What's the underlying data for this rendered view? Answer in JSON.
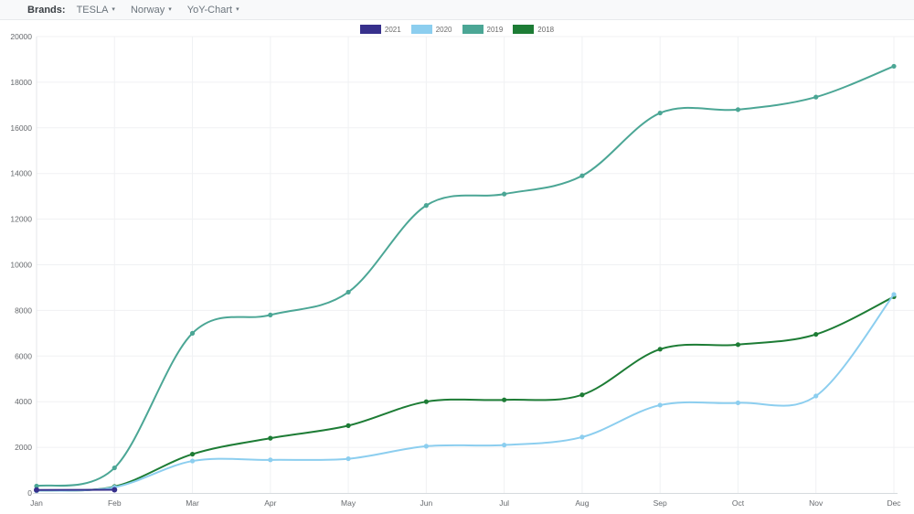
{
  "header": {
    "brands_label": "Brands:",
    "dropdowns": [
      {
        "label": "TESLA"
      },
      {
        "label": "Norway"
      },
      {
        "label": "YoY-Chart"
      }
    ],
    "caret_icon": "▾"
  },
  "chart_data": {
    "type": "line",
    "title": "",
    "xlabel": "",
    "ylabel": "",
    "x": [
      "Jan",
      "Feb",
      "Mar",
      "Apr",
      "May",
      "Jun",
      "Jul",
      "Aug",
      "Sep",
      "Oct",
      "Nov",
      "Dec"
    ],
    "ylim": [
      0,
      20000
    ],
    "ytick_step": 2000,
    "grid": true,
    "legend_position": "top",
    "colors": {
      "grid": "#f0f1f3",
      "axis": "#d6dade",
      "tick_label": "#66696d"
    },
    "series": [
      {
        "name": "2021",
        "color": "#37308c",
        "values": [
          130,
          140
        ]
      },
      {
        "name": "2020",
        "color": "#8cceef",
        "values": [
          100,
          250,
          1400,
          1450,
          1500,
          2050,
          2100,
          2450,
          3850,
          3950,
          4250,
          8700
        ]
      },
      {
        "name": "2019",
        "color": "#4ba695",
        "values": [
          300,
          1100,
          7000,
          7800,
          8800,
          12600,
          13100,
          13900,
          16650,
          16800,
          17350,
          18700
        ]
      },
      {
        "name": "2018",
        "color": "#1d7c35",
        "values": [
          100,
          280,
          1700,
          2400,
          2950,
          4000,
          4080,
          4300,
          6300,
          6500,
          6950,
          8600
        ]
      }
    ]
  }
}
